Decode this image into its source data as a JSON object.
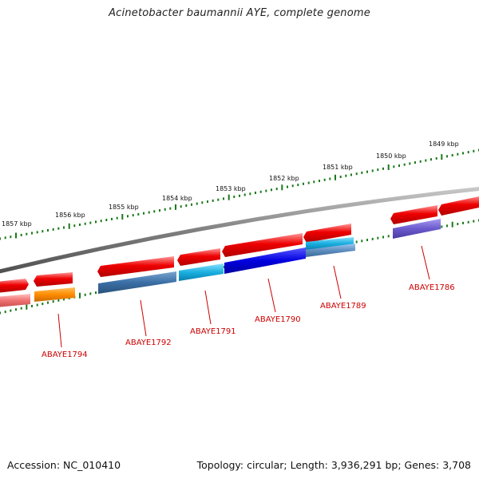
{
  "title": "Acinetobacter baumannii AYE, complete genome",
  "footer": {
    "accession": "Accession: NC_010410",
    "topology": "Topology: circular; Length: 3,936,291 bp; Genes: 3,708"
  },
  "ruler_labels": [
    "1857 kbp",
    "1856 kbp",
    "1855 kbp",
    "1854 kbp",
    "1853 kbp",
    "1852 kbp",
    "1851 kbp",
    "1850 kbp",
    "1849 kbp"
  ],
  "gene_labels": [
    "ABAYE1794",
    "ABAYE1792",
    "ABAYE1791",
    "ABAYE1790",
    "ABAYE1789",
    "ABAYE1786"
  ],
  "colors": {
    "forward_strand": "#ee0000",
    "backbone": "#808080",
    "ruler": "#1a7a1a",
    "label": "#cc0000"
  },
  "feature_colors": [
    "#f07070",
    "#ff8c00",
    "#3a6ea5",
    "#1ab0e0",
    "#0000e0",
    "#5f9ed8",
    "#6a5acd"
  ]
}
